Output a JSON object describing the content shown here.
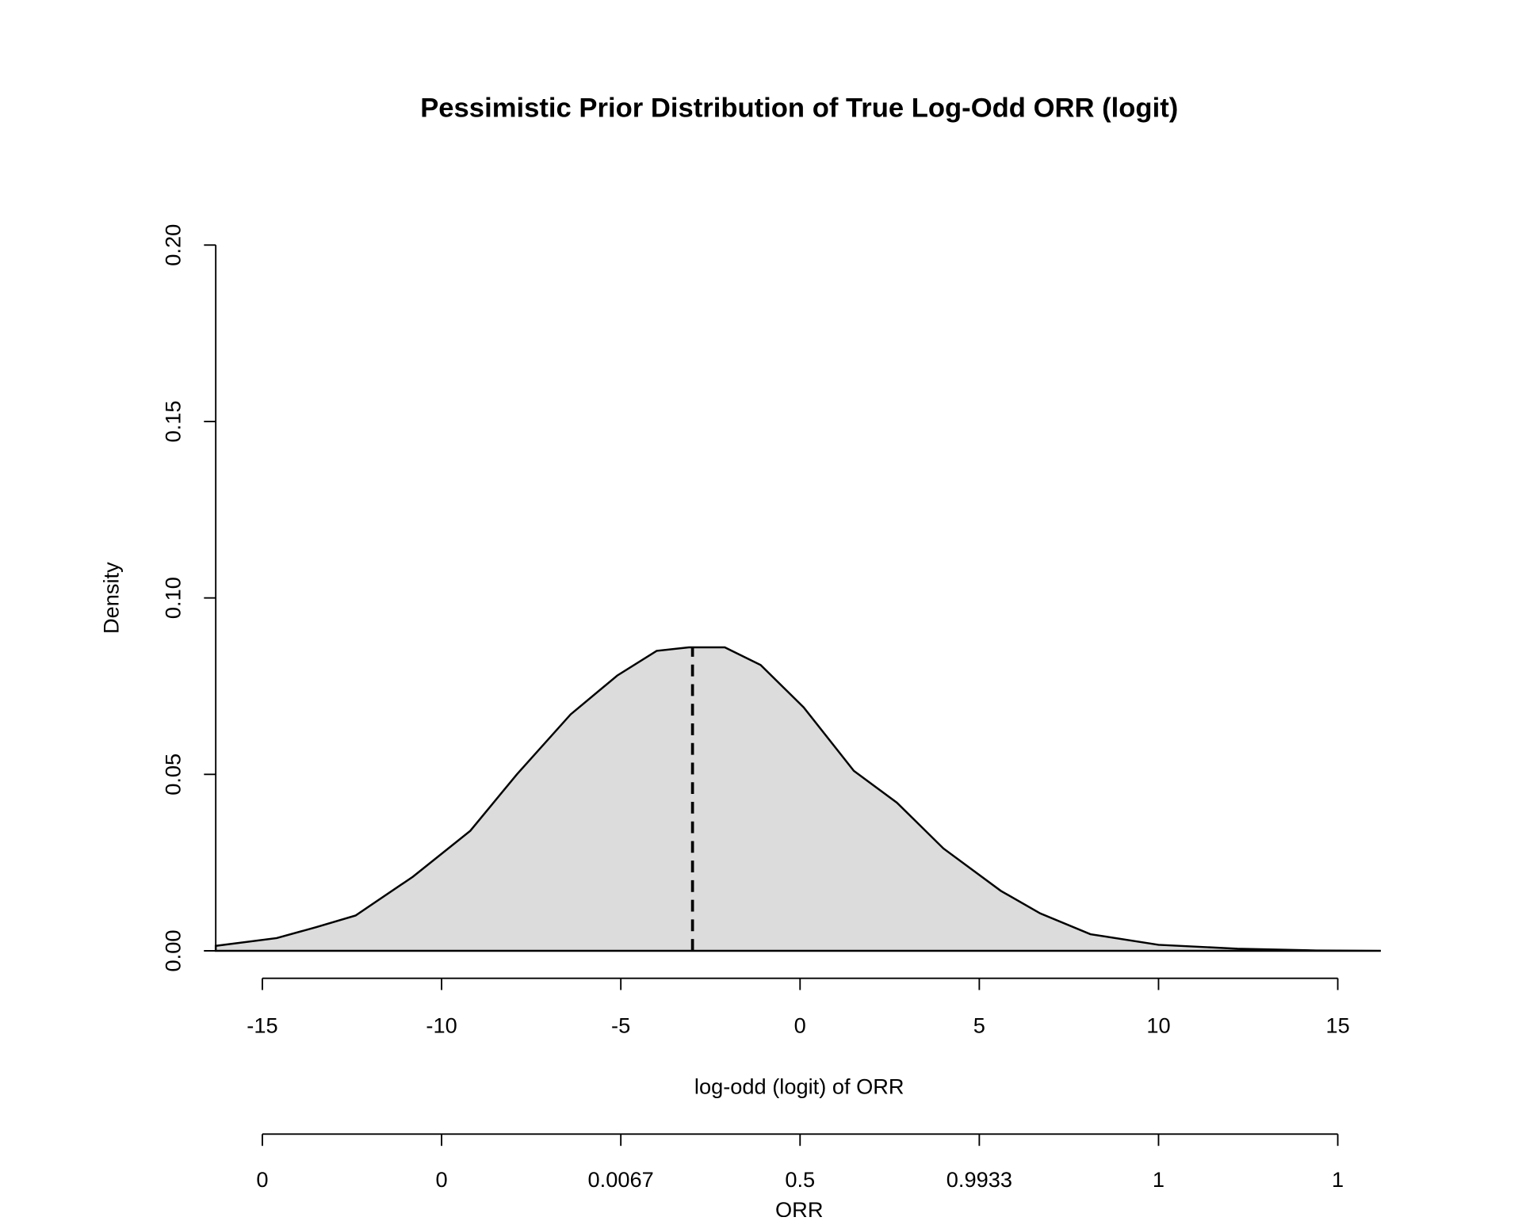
{
  "chart_data": {
    "type": "area",
    "title": "Pessimistic Prior Distribution of True Log-Odd ORR (logit)",
    "x_label": "log-odd (logit) of ORR",
    "y_label": "Density",
    "x2_label": "ORR",
    "x": [
      -16.3,
      -14.6,
      -13.5,
      -12.4,
      -10.8,
      -9.2,
      -7.9,
      -6.4,
      -5.1,
      -4.0,
      -3.1,
      -2.1,
      -1.1,
      0.1,
      1.5,
      2.7,
      4.0,
      5.6,
      6.7,
      8.1,
      10.0,
      12.2,
      14.4,
      16.2
    ],
    "values": [
      0.0014,
      0.0036,
      0.0067,
      0.01,
      0.021,
      0.034,
      0.05,
      0.067,
      0.078,
      0.085,
      0.086,
      0.086,
      0.081,
      0.069,
      0.051,
      0.042,
      0.029,
      0.017,
      0.0106,
      0.0047,
      0.0017,
      0.0006,
      0.0001,
      0.0
    ],
    "color": "#dcdcdc",
    "line_color": "#000000",
    "vline": -3,
    "xlim": [
      -16.3,
      16.2
    ],
    "ylim": [
      0,
      0.2
    ],
    "xticks": [
      -15,
      -10,
      -5,
      0,
      5,
      10,
      15
    ],
    "yticks": [
      {
        "value": 0,
        "label": "0.00"
      },
      {
        "value": 0.05,
        "label": "0.05"
      },
      {
        "value": 0.1,
        "label": "0.10"
      },
      {
        "value": 0.15,
        "label": "0.15"
      },
      {
        "value": 0.2,
        "label": "0.20"
      }
    ],
    "x2ticks": [
      {
        "value": -15,
        "label": "0"
      },
      {
        "value": -10,
        "label": "0"
      },
      {
        "value": -5,
        "label": "0.0067"
      },
      {
        "value": 0,
        "label": "0.5"
      },
      {
        "value": 5,
        "label": "0.9933"
      },
      {
        "value": 10,
        "label": "1"
      },
      {
        "value": 15,
        "label": "1"
      }
    ]
  }
}
